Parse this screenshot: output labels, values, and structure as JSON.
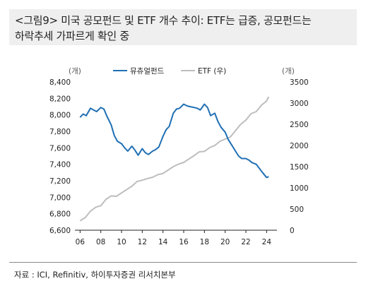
{
  "title": {
    "line1": "<그림9> 미국 공모펀드 및 ETF 개수 추이: ETF는 급증, 공모펀드는",
    "line2": "하락추세 가파르게 확인 중"
  },
  "source": "자료 : ICI, Refinitiv, 하이투자증권 리서치본부",
  "chart_data": {
    "type": "line",
    "left_unit": "(개)",
    "right_unit": "(개)",
    "x_tick_labels": [
      "06",
      "08",
      "10",
      "12",
      "14",
      "16",
      "18",
      "20",
      "22",
      "24"
    ],
    "x_tick_years": [
      2006,
      2008,
      2010,
      2012,
      2014,
      2016,
      2018,
      2020,
      2022,
      2024
    ],
    "xlim": [
      2005.5,
      2025.0
    ],
    "ylim_left": [
      6600,
      8400
    ],
    "ylim_right": [
      0,
      3500
    ],
    "y_left_ticks": [
      "6,600",
      "6,800",
      "7,000",
      "7,200",
      "7,400",
      "7,600",
      "7,800",
      "8,000",
      "8,200",
      "8,400"
    ],
    "y_right_ticks": [
      "0",
      "500",
      "1000",
      "1500",
      "2000",
      "2500",
      "3000",
      "3500"
    ],
    "grid": false,
    "legend_position": "top",
    "series": [
      {
        "name": "뮤츄얼펀드",
        "axis": "left",
        "color": "#1f6fb4",
        "x": [
          2006.0,
          2006.3,
          2006.6,
          2007.0,
          2007.3,
          2007.6,
          2008.0,
          2008.3,
          2008.6,
          2009.0,
          2009.3,
          2009.6,
          2010.0,
          2010.3,
          2010.6,
          2011.0,
          2011.3,
          2011.6,
          2012.0,
          2012.3,
          2012.6,
          2013.0,
          2013.3,
          2013.6,
          2014.0,
          2014.3,
          2014.6,
          2015.0,
          2015.3,
          2015.6,
          2016.0,
          2016.3,
          2016.6,
          2017.0,
          2017.3,
          2017.6,
          2018.0,
          2018.3,
          2018.6,
          2019.0,
          2019.3,
          2019.6,
          2020.0,
          2020.3,
          2020.6,
          2021.0,
          2021.3,
          2021.6,
          2022.0,
          2022.3,
          2022.6,
          2023.0,
          2023.3,
          2023.6,
          2024.0,
          2024.2
        ],
        "y": [
          7970,
          8010,
          7990,
          8080,
          8060,
          8040,
          8090,
          8070,
          7980,
          7880,
          7750,
          7680,
          7650,
          7600,
          7560,
          7620,
          7570,
          7510,
          7590,
          7540,
          7520,
          7560,
          7580,
          7610,
          7740,
          7820,
          7860,
          8020,
          8070,
          8080,
          8130,
          8110,
          8100,
          8090,
          8080,
          8060,
          8130,
          8090,
          7990,
          8020,
          7920,
          7850,
          7790,
          7700,
          7640,
          7560,
          7500,
          7470,
          7470,
          7450,
          7420,
          7400,
          7350,
          7300,
          7240,
          7250
        ]
      },
      {
        "name": "ETF (우)",
        "axis": "right",
        "color": "#bdbdbd",
        "x": [
          2006.0,
          2006.5,
          2007.0,
          2007.5,
          2008.0,
          2008.5,
          2009.0,
          2009.5,
          2010.0,
          2010.5,
          2011.0,
          2011.5,
          2012.0,
          2012.5,
          2013.0,
          2013.5,
          2014.0,
          2014.5,
          2015.0,
          2015.5,
          2016.0,
          2016.5,
          2017.0,
          2017.5,
          2018.0,
          2018.5,
          2019.0,
          2019.5,
          2020.0,
          2020.5,
          2021.0,
          2021.5,
          2022.0,
          2022.5,
          2023.0,
          2023.5,
          2024.0,
          2024.2
        ],
        "y": [
          220,
          300,
          450,
          540,
          580,
          730,
          810,
          800,
          880,
          960,
          1040,
          1150,
          1180,
          1220,
          1250,
          1310,
          1340,
          1420,
          1500,
          1560,
          1600,
          1680,
          1760,
          1850,
          1860,
          1950,
          2000,
          2100,
          2150,
          2200,
          2350,
          2500,
          2600,
          2750,
          2800,
          2950,
          3050,
          3150
        ]
      }
    ]
  }
}
